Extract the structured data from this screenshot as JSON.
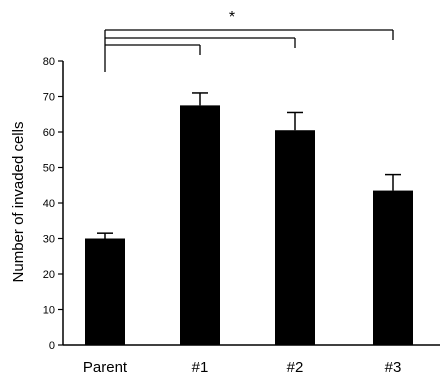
{
  "chart_data": {
    "type": "bar",
    "categories": [
      "Parent",
      "#1",
      "#2",
      "#3"
    ],
    "values": [
      30,
      67.5,
      60.5,
      43.5
    ],
    "errors": [
      1.5,
      3.5,
      5,
      4.5
    ],
    "title": "",
    "xlabel": "",
    "ylabel": "Number of invaded cells",
    "ylim": [
      0,
      80
    ],
    "yticks": [
      0,
      10,
      20,
      30,
      40,
      50,
      60,
      70,
      80
    ],
    "grid": false,
    "bar_color": "#000000",
    "significance": {
      "from": "Parent",
      "to": [
        "#1",
        "#2",
        "#3"
      ],
      "label": "*"
    }
  }
}
